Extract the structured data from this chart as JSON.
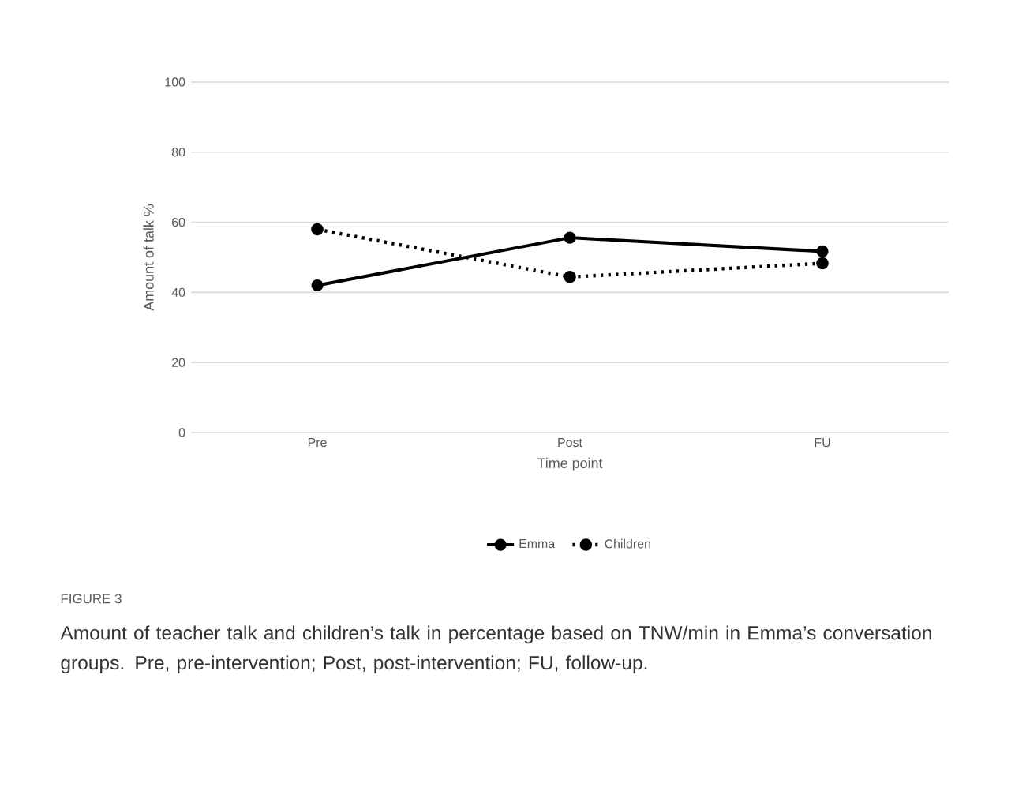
{
  "chart_data": {
    "type": "line",
    "xlabel": "Time point",
    "ylabel": "Amount of talk %",
    "categories": [
      "Pre",
      "Post",
      "FU"
    ],
    "series": [
      {
        "name": "Emma",
        "color": "#000000",
        "values": [
          42.0,
          55.6,
          51.7
        ],
        "line_style": "solid"
      },
      {
        "name": "Children",
        "color": "#000000",
        "values": [
          58.0,
          44.4,
          48.3
        ],
        "line_style": "dotted"
      }
    ],
    "ylim": [
      0,
      100
    ],
    "yticks": [
      0,
      20,
      40,
      60,
      80,
      100
    ],
    "grid": "y",
    "legend": "bottom",
    "marker": "circle",
    "annotations": [
      "FIGURE 3",
      "Amount of teacher talk and children’s talk in percentage based on TNW/min in Emma’s conversation groups. Pre, pre-intervention; Post, post-intervention; FU, follow-up."
    ]
  }
}
